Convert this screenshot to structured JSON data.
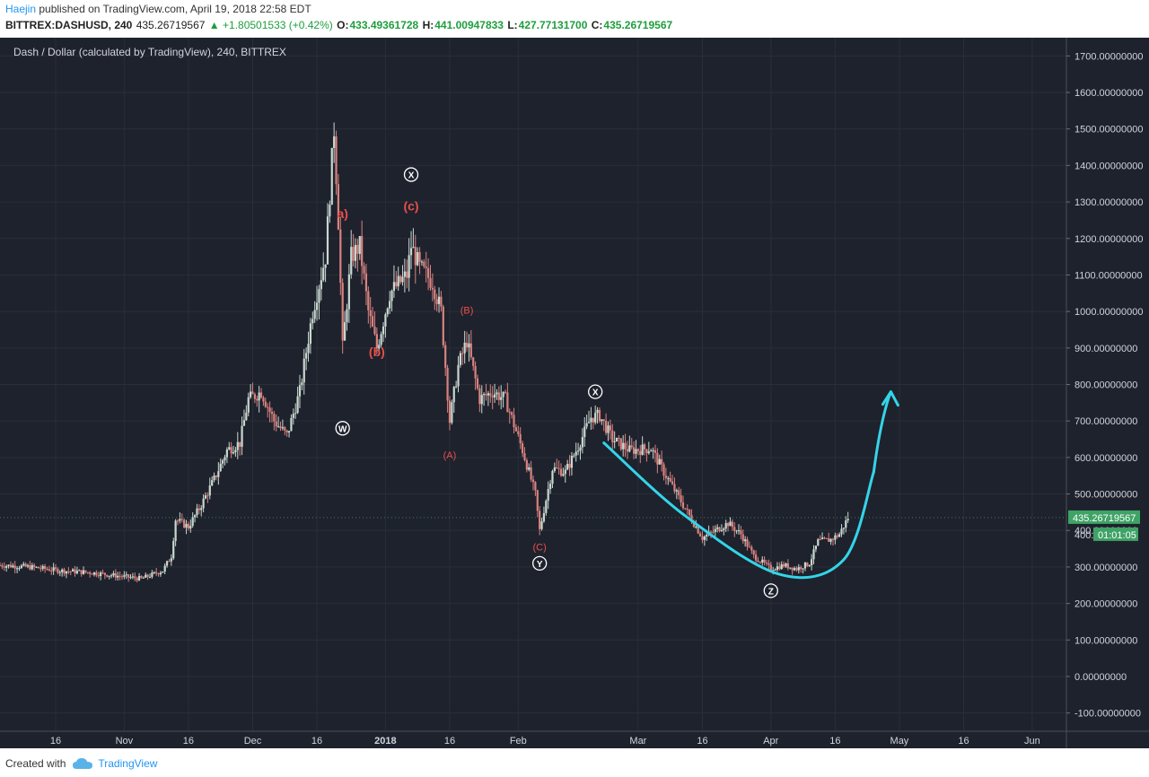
{
  "header": {
    "author": "Haejin",
    "published_text": " published on TradingView.com, April 19, 2018 22:58 EDT",
    "symbol": "BITTREX:DASHUSD, 240",
    "last": "435.26719567",
    "change": "▲ +1.80501533 (+0.42%)",
    "o_label": "O:",
    "o_value": "433.49361728",
    "h_label": "H:",
    "h_value": "441.00947833",
    "l_label": "L:",
    "l_value": "427.77131700",
    "c_label": "C:",
    "c_value": "435.26719567"
  },
  "footer": {
    "created_with": "Created with",
    "brand": "TradingView"
  },
  "colors": {
    "background": "#1e222d",
    "grid": "#2a2e39",
    "up": "#c9d8cf",
    "down": "#d9827f",
    "cyan": "#35d4e8",
    "label_red": "#e8504a",
    "price_badge": "#3fa366"
  },
  "chart_data": {
    "type": "line",
    "title": "Dash / Dollar (calculated by TradingView), 240, BITTREX",
    "ylim": [
      -150,
      1750
    ],
    "y_ticks": [
      1700,
      1600,
      1500,
      1400,
      1300,
      1200,
      1100,
      1000,
      900,
      800,
      700,
      600,
      500,
      400,
      300,
      200,
      100,
      0,
      -100
    ],
    "y_tick_labels": [
      "1700.00000000",
      "1600.00000000",
      "1500.00000000",
      "1400.00000000",
      "1300.00000000",
      "1200.00000000",
      "1100.00000000",
      "1000.00000000",
      "900.00000000",
      "800.00000000",
      "700.00000000",
      "600.00000000",
      "500.00000000",
      "400.00000000",
      "300.00000000",
      "200.00000000",
      "100.00000000",
      "0.00000000",
      "-100.00000000"
    ],
    "x_range": [
      "2017-10-03",
      "2018-06-09"
    ],
    "x_ticks": [
      {
        "date": "2017-10-16",
        "label": "16"
      },
      {
        "date": "2017-11-01",
        "label": "Nov"
      },
      {
        "date": "2017-11-16",
        "label": "16"
      },
      {
        "date": "2017-12-01",
        "label": "Dec"
      },
      {
        "date": "2017-12-16",
        "label": "16"
      },
      {
        "date": "2018-01-01",
        "label": "2018"
      },
      {
        "date": "2018-01-16",
        "label": "16"
      },
      {
        "date": "2018-02-01",
        "label": "Feb"
      },
      {
        "date": "2018-03-01",
        "label": "Mar"
      },
      {
        "date": "2018-03-16",
        "label": "16"
      },
      {
        "date": "2018-04-01",
        "label": "Apr"
      },
      {
        "date": "2018-04-16",
        "label": "16"
      },
      {
        "date": "2018-05-01",
        "label": "May"
      },
      {
        "date": "2018-05-16",
        "label": "16"
      },
      {
        "date": "2018-06-01",
        "label": "Jun"
      }
    ],
    "series": [
      {
        "values": [
          {
            "x": "2017-10-03",
            "y": 305
          },
          {
            "x": "2017-10-10",
            "y": 300
          },
          {
            "x": "2017-10-17",
            "y": 290
          },
          {
            "x": "2017-10-24",
            "y": 285
          },
          {
            "x": "2017-10-31",
            "y": 275
          },
          {
            "x": "2017-11-05",
            "y": 268
          },
          {
            "x": "2017-11-10",
            "y": 290
          },
          {
            "x": "2017-11-12",
            "y": 330
          },
          {
            "x": "2017-11-13",
            "y": 430
          },
          {
            "x": "2017-11-16",
            "y": 410
          },
          {
            "x": "2017-11-19",
            "y": 470
          },
          {
            "x": "2017-11-22",
            "y": 540
          },
          {
            "x": "2017-11-25",
            "y": 620
          },
          {
            "x": "2017-11-28",
            "y": 640
          },
          {
            "x": "2017-11-30",
            "y": 760
          },
          {
            "x": "2017-12-03",
            "y": 780
          },
          {
            "x": "2017-12-06",
            "y": 700
          },
          {
            "x": "2017-12-09",
            "y": 660
          },
          {
            "x": "2017-12-12",
            "y": 780
          },
          {
            "x": "2017-12-15",
            "y": 1000
          },
          {
            "x": "2017-12-18",
            "y": 1150
          },
          {
            "x": "2017-12-20",
            "y": 1500
          },
          {
            "x": "2017-12-21",
            "y": 1250
          },
          {
            "x": "2017-12-22",
            "y": 900
          },
          {
            "x": "2017-12-24",
            "y": 1150
          },
          {
            "x": "2017-12-26",
            "y": 1180
          },
          {
            "x": "2017-12-28",
            "y": 1000
          },
          {
            "x": "2017-12-30",
            "y": 900
          },
          {
            "x": "2018-01-02",
            "y": 1050
          },
          {
            "x": "2018-01-06",
            "y": 1100
          },
          {
            "x": "2018-01-07",
            "y": 1180
          },
          {
            "x": "2018-01-09",
            "y": 1120
          },
          {
            "x": "2018-01-12",
            "y": 1080
          },
          {
            "x": "2018-01-14",
            "y": 1000
          },
          {
            "x": "2018-01-16",
            "y": 700
          },
          {
            "x": "2018-01-18",
            "y": 850
          },
          {
            "x": "2018-01-20",
            "y": 920
          },
          {
            "x": "2018-01-23",
            "y": 760
          },
          {
            "x": "2018-01-26",
            "y": 780
          },
          {
            "x": "2018-01-29",
            "y": 760
          },
          {
            "x": "2018-02-02",
            "y": 620
          },
          {
            "x": "2018-02-05",
            "y": 500
          },
          {
            "x": "2018-02-06",
            "y": 400
          },
          {
            "x": "2018-02-09",
            "y": 570
          },
          {
            "x": "2018-02-12",
            "y": 560
          },
          {
            "x": "2018-02-15",
            "y": 630
          },
          {
            "x": "2018-02-18",
            "y": 710
          },
          {
            "x": "2018-02-20",
            "y": 715
          },
          {
            "x": "2018-02-23",
            "y": 650
          },
          {
            "x": "2018-02-27",
            "y": 620
          },
          {
            "x": "2018-03-04",
            "y": 625
          },
          {
            "x": "2018-03-07",
            "y": 560
          },
          {
            "x": "2018-03-10",
            "y": 500
          },
          {
            "x": "2018-03-13",
            "y": 440
          },
          {
            "x": "2018-03-16",
            "y": 380
          },
          {
            "x": "2018-03-19",
            "y": 400
          },
          {
            "x": "2018-03-22",
            "y": 420
          },
          {
            "x": "2018-03-25",
            "y": 390
          },
          {
            "x": "2018-03-28",
            "y": 330
          },
          {
            "x": "2018-04-01",
            "y": 295
          },
          {
            "x": "2018-04-04",
            "y": 305
          },
          {
            "x": "2018-04-07",
            "y": 295
          },
          {
            "x": "2018-04-10",
            "y": 310
          },
          {
            "x": "2018-04-12",
            "y": 370
          },
          {
            "x": "2018-04-15",
            "y": 375
          },
          {
            "x": "2018-04-17",
            "y": 390
          },
          {
            "x": "2018-04-19",
            "y": 435
          }
        ]
      }
    ],
    "annotations": [
      {
        "x": "2017-12-22",
        "y": 680,
        "text": "W",
        "style": "circle"
      },
      {
        "x": "2017-12-22",
        "y": 1268,
        "text": "a)",
        "style": "red-bold"
      },
      {
        "x": "2017-12-30",
        "y": 890,
        "text": "(b)",
        "style": "red-bold"
      },
      {
        "x": "2018-01-07",
        "y": 1289,
        "text": "(c)",
        "style": "red-bold"
      },
      {
        "x": "2018-01-07",
        "y": 1375,
        "text": "X",
        "style": "circle"
      },
      {
        "x": "2018-01-16",
        "y": 610,
        "text": "(A)",
        "style": "red-small"
      },
      {
        "x": "2018-01-20",
        "y": 1007,
        "text": "(B)",
        "style": "red-small"
      },
      {
        "x": "2018-02-06",
        "y": 358,
        "text": "(C)",
        "style": "red-small"
      },
      {
        "x": "2018-02-06",
        "y": 310,
        "text": "Y",
        "style": "circle"
      },
      {
        "x": "2018-02-19",
        "y": 780,
        "text": "X",
        "style": "circle"
      },
      {
        "x": "2018-04-01",
        "y": 235,
        "text": "Z",
        "style": "circle"
      }
    ],
    "drawings": [
      {
        "type": "curve",
        "points": [
          {
            "x": "2018-02-21",
            "y": 640
          },
          {
            "x": "2018-03-12",
            "y": 440
          },
          {
            "x": "2018-04-03",
            "y": 280
          },
          {
            "x": "2018-04-18",
            "y": 320
          },
          {
            "x": "2018-04-25",
            "y": 560
          }
        ]
      },
      {
        "type": "arrow",
        "points": [
          {
            "x": "2018-04-25",
            "y": 560
          },
          {
            "x": "2018-04-29",
            "y": 780
          }
        ]
      }
    ],
    "last_price_label": "435.26719567",
    "countdown_label": "01:01:05",
    "hidden_price_label": "400.",
    "last_price": 435.27
  }
}
